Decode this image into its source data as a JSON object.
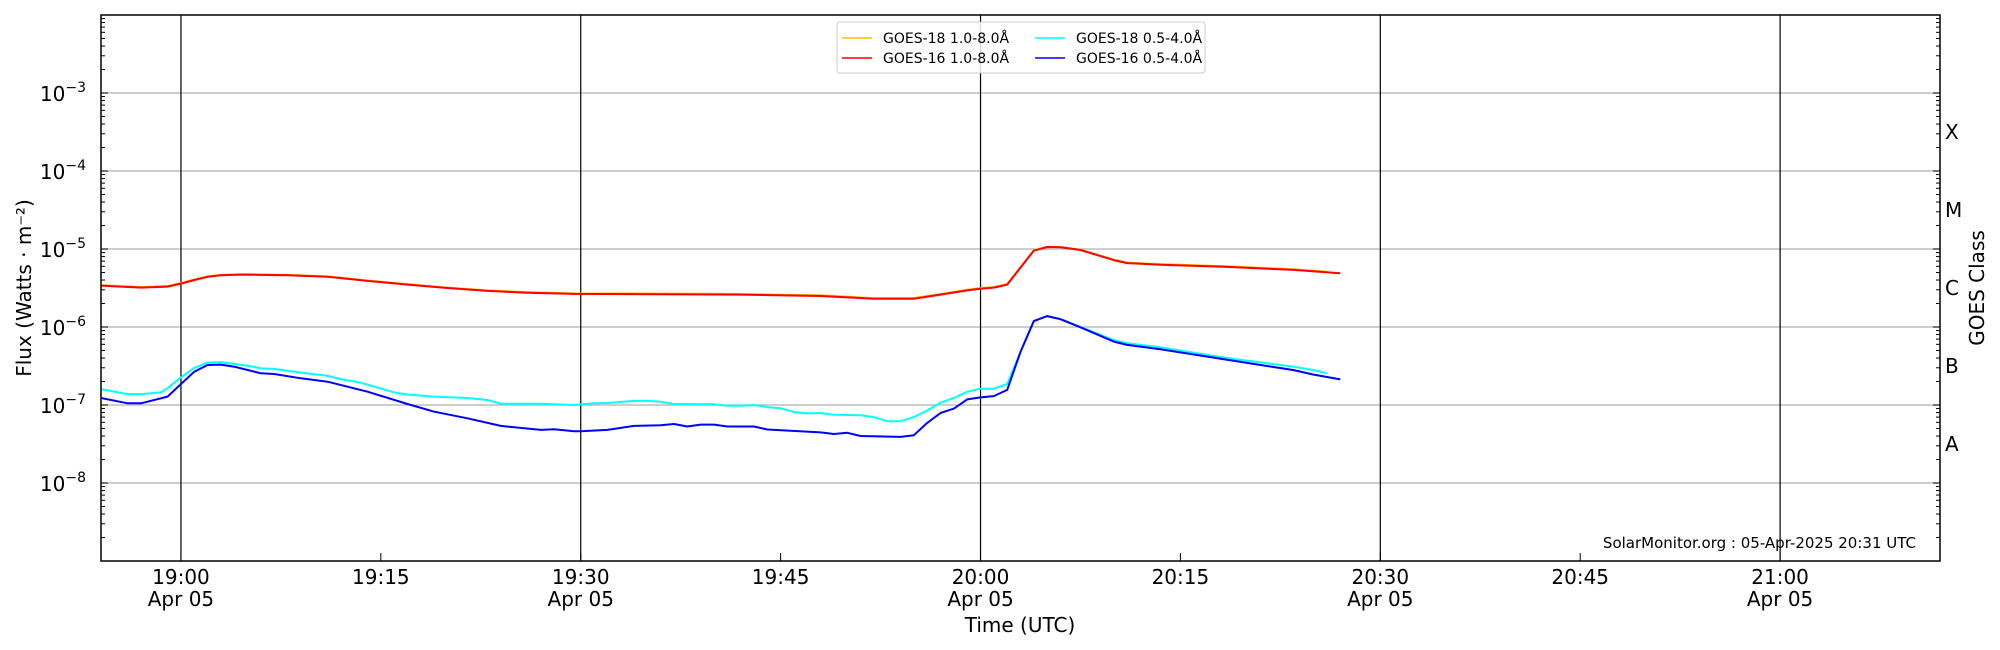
{
  "chart_data": {
    "type": "line",
    "title": "",
    "xlabel": "Time (UTC)",
    "ylabel": "Flux (Watts · m⁻²)",
    "ylabel_right": "GOES Class",
    "yscale": "log",
    "ylim": [
      1e-09,
      0.01
    ],
    "xlim_minutes_from_1900": [
      -6,
      132
    ],
    "grid": "horizontal at decades, vertical at half-hours",
    "legend_placement": "top-center",
    "x_unit": "minutes after 19:00 UTC, 05-Apr-2025",
    "x_ticks": [
      {
        "t": 0,
        "time": "19:00",
        "date": "Apr 05"
      },
      {
        "t": 15,
        "time": "19:15",
        "date": ""
      },
      {
        "t": 30,
        "time": "19:30",
        "date": "Apr 05"
      },
      {
        "t": 45,
        "time": "19:45",
        "date": ""
      },
      {
        "t": 60,
        "time": "20:00",
        "date": "Apr 05"
      },
      {
        "t": 75,
        "time": "20:15",
        "date": ""
      },
      {
        "t": 90,
        "time": "20:30",
        "date": "Apr 05"
      },
      {
        "t": 105,
        "time": "20:45",
        "date": ""
      },
      {
        "t": 120,
        "time": "21:00",
        "date": "Apr 05"
      }
    ],
    "y_ticks": [
      {
        "exp": -3,
        "base": "10",
        "sup": "−3"
      },
      {
        "exp": -4,
        "base": "10",
        "sup": "−4"
      },
      {
        "exp": -5,
        "base": "10",
        "sup": "−5"
      },
      {
        "exp": -6,
        "base": "10",
        "sup": "−6"
      },
      {
        "exp": -7,
        "base": "10",
        "sup": "−7"
      },
      {
        "exp": -8,
        "base": "10",
        "sup": "−8"
      }
    ],
    "class_labels": [
      {
        "label": "X",
        "log": -3.5
      },
      {
        "label": "M",
        "log": -4.5
      },
      {
        "label": "C",
        "log": -5.5
      },
      {
        "label": "B",
        "log": -6.5
      },
      {
        "label": "A",
        "log": -7.5
      }
    ],
    "series": [
      {
        "name": "GOES-18 1.0-8.0Å",
        "color": "#ffc000",
        "x": [
          -6,
          -3,
          -1,
          0,
          1,
          2,
          3,
          4.5,
          8,
          11,
          14,
          17,
          20,
          23,
          26,
          29.5,
          36,
          42,
          48,
          52,
          55,
          57,
          59,
          60,
          61,
          62,
          64,
          65,
          66,
          67.5,
          70,
          71,
          73.5,
          78.5,
          83.5,
          86
        ],
        "y": [
          3.45e-06,
          3.25e-06,
          3.35e-06,
          3.65e-06,
          4.05e-06,
          4.45e-06,
          4.65e-06,
          4.75e-06,
          4.65e-06,
          4.45e-06,
          3.95e-06,
          3.55e-06,
          3.2e-06,
          2.95e-06,
          2.8e-06,
          2.7e-06,
          2.68e-06,
          2.65e-06,
          2.55e-06,
          2.35e-06,
          2.35e-06,
          2.65e-06,
          3e-06,
          3.15e-06,
          3.25e-06,
          3.55e-06,
          9.6e-06,
          1.07e-05,
          1.06e-05,
          9.8e-06,
          7.3e-06,
          6.7e-06,
          6.4e-06,
          6e-06,
          5.5e-06,
          5.1e-06
        ]
      },
      {
        "name": "GOES-18 0.5-4.0Å",
        "color": "#00ffff",
        "x": [
          -6,
          -4,
          -3,
          -1.5,
          -1,
          0,
          1,
          2,
          3,
          4,
          5,
          6,
          7,
          9,
          11,
          12,
          13.5,
          16,
          17,
          19,
          21.5,
          23,
          24,
          27,
          29.5,
          31,
          32,
          34,
          35,
          36,
          37,
          40,
          41,
          42,
          43,
          44,
          45,
          46,
          47,
          48,
          49,
          51,
          52,
          53,
          54,
          55,
          56,
          57,
          58,
          59,
          60,
          61,
          62,
          63,
          64,
          65,
          66,
          67.5,
          70,
          71,
          73.5,
          78.5,
          83.5,
          85,
          86
        ],
        "y": [
          1.6e-07,
          1.38e-07,
          1.38e-07,
          1.45e-07,
          1.64e-07,
          2.26e-07,
          3e-07,
          3.5e-07,
          3.55e-07,
          3.35e-07,
          3.2e-07,
          2.95e-07,
          2.9e-07,
          2.6e-07,
          2.37e-07,
          2.15e-07,
          1.93e-07,
          1.45e-07,
          1.36e-07,
          1.28e-07,
          1.23e-07,
          1.16e-07,
          1.04e-07,
          1.04e-07,
          1e-07,
          1.05e-07,
          1.06e-07,
          1.13e-07,
          1.13e-07,
          1.1e-07,
          1.03e-07,
          1.02e-07,
          9.8e-08,
          9.8e-08,
          1e-07,
          9.4e-08,
          9.1e-08,
          8.1e-08,
          7.8e-08,
          7.9e-08,
          7.5e-08,
          7.4e-08,
          7e-08,
          6.2e-08,
          6.2e-08,
          7e-08,
          8.5e-08,
          1.07e-07,
          1.23e-07,
          1.48e-07,
          1.62e-07,
          1.62e-07,
          1.86e-07,
          4.8e-07,
          1.19e-06,
          1.38e-06,
          1.26e-06,
          1e-06,
          6.8e-07,
          6.2e-07,
          5.5e-07,
          4e-07,
          3.1e-07,
          2.8e-07,
          2.55e-07
        ]
      },
      {
        "name": "GOES-16 1.0-8.0Å",
        "color": "#ff0000",
        "x": [
          -6,
          -3,
          -1,
          0,
          1,
          2,
          3,
          4.5,
          8,
          11,
          14,
          17,
          20,
          23,
          26,
          29.5,
          36,
          42,
          48,
          52,
          55,
          57,
          59,
          60,
          61,
          62,
          64,
          65,
          66,
          67.5,
          70,
          71,
          73.5,
          78.5,
          83.5,
          87
        ],
        "y": [
          3.39e-06,
          3.2e-06,
          3.3e-06,
          3.6e-06,
          4e-06,
          4.4e-06,
          4.6e-06,
          4.7e-06,
          4.6e-06,
          4.4e-06,
          3.9e-06,
          3.5e-06,
          3.16e-06,
          2.9e-06,
          2.75e-06,
          2.66e-06,
          2.63e-06,
          2.6e-06,
          2.5e-06,
          2.3e-06,
          2.3e-06,
          2.6e-06,
          2.95e-06,
          3.1e-06,
          3.2e-06,
          3.5e-06,
          9.5e-06,
          1.06e-05,
          1.05e-05,
          9.7e-06,
          7.2e-06,
          6.6e-06,
          6.3e-06,
          5.9e-06,
          5.4e-06,
          4.9e-06
        ]
      },
      {
        "name": "GOES-16 0.5-4.0Å",
        "color": "#0000ff",
        "x": [
          -6,
          -4,
          -3,
          -1,
          0,
          1,
          2,
          3,
          4,
          6,
          7,
          9,
          11,
          14,
          17,
          19,
          21.5,
          24,
          27,
          28,
          29.5,
          30,
          32,
          34,
          36,
          37,
          38,
          39,
          40,
          41,
          43,
          44,
          48,
          49,
          50,
          51,
          54,
          55,
          56,
          57,
          58,
          59,
          60,
          61,
          62,
          63,
          64,
          65,
          66,
          67.5,
          70,
          71,
          73.5,
          78.5,
          83.5,
          85,
          87
        ],
        "y": [
          1.23e-07,
          1.05e-07,
          1.05e-07,
          1.28e-07,
          1.86e-07,
          2.67e-07,
          3.26e-07,
          3.3e-07,
          3.1e-07,
          2.55e-07,
          2.5e-07,
          2.2e-07,
          1.99e-07,
          1.48e-07,
          1.03e-07,
          8.2e-08,
          6.75e-08,
          5.4e-08,
          4.8e-08,
          4.9e-08,
          4.6e-08,
          4.6e-08,
          4.8e-08,
          5.4e-08,
          5.5e-08,
          5.7e-08,
          5.3e-08,
          5.6e-08,
          5.6e-08,
          5.3e-08,
          5.3e-08,
          4.85e-08,
          4.45e-08,
          4.25e-08,
          4.4e-08,
          4e-08,
          3.9e-08,
          4.1e-08,
          5.9e-08,
          7.9e-08,
          9e-08,
          1.18e-07,
          1.25e-07,
          1.3e-07,
          1.56e-07,
          4.8e-07,
          1.19e-06,
          1.38e-06,
          1.26e-06,
          9.9e-07,
          6.5e-07,
          5.9e-07,
          5.2e-07,
          3.8e-07,
          2.8e-07,
          2.45e-07,
          2.13e-07
        ]
      }
    ],
    "annotation": "SolarMonitor.org : 05-Apr-2025 20:31 UTC"
  },
  "colors": {
    "grid": "#b0b0b0",
    "axis": "#000000"
  }
}
